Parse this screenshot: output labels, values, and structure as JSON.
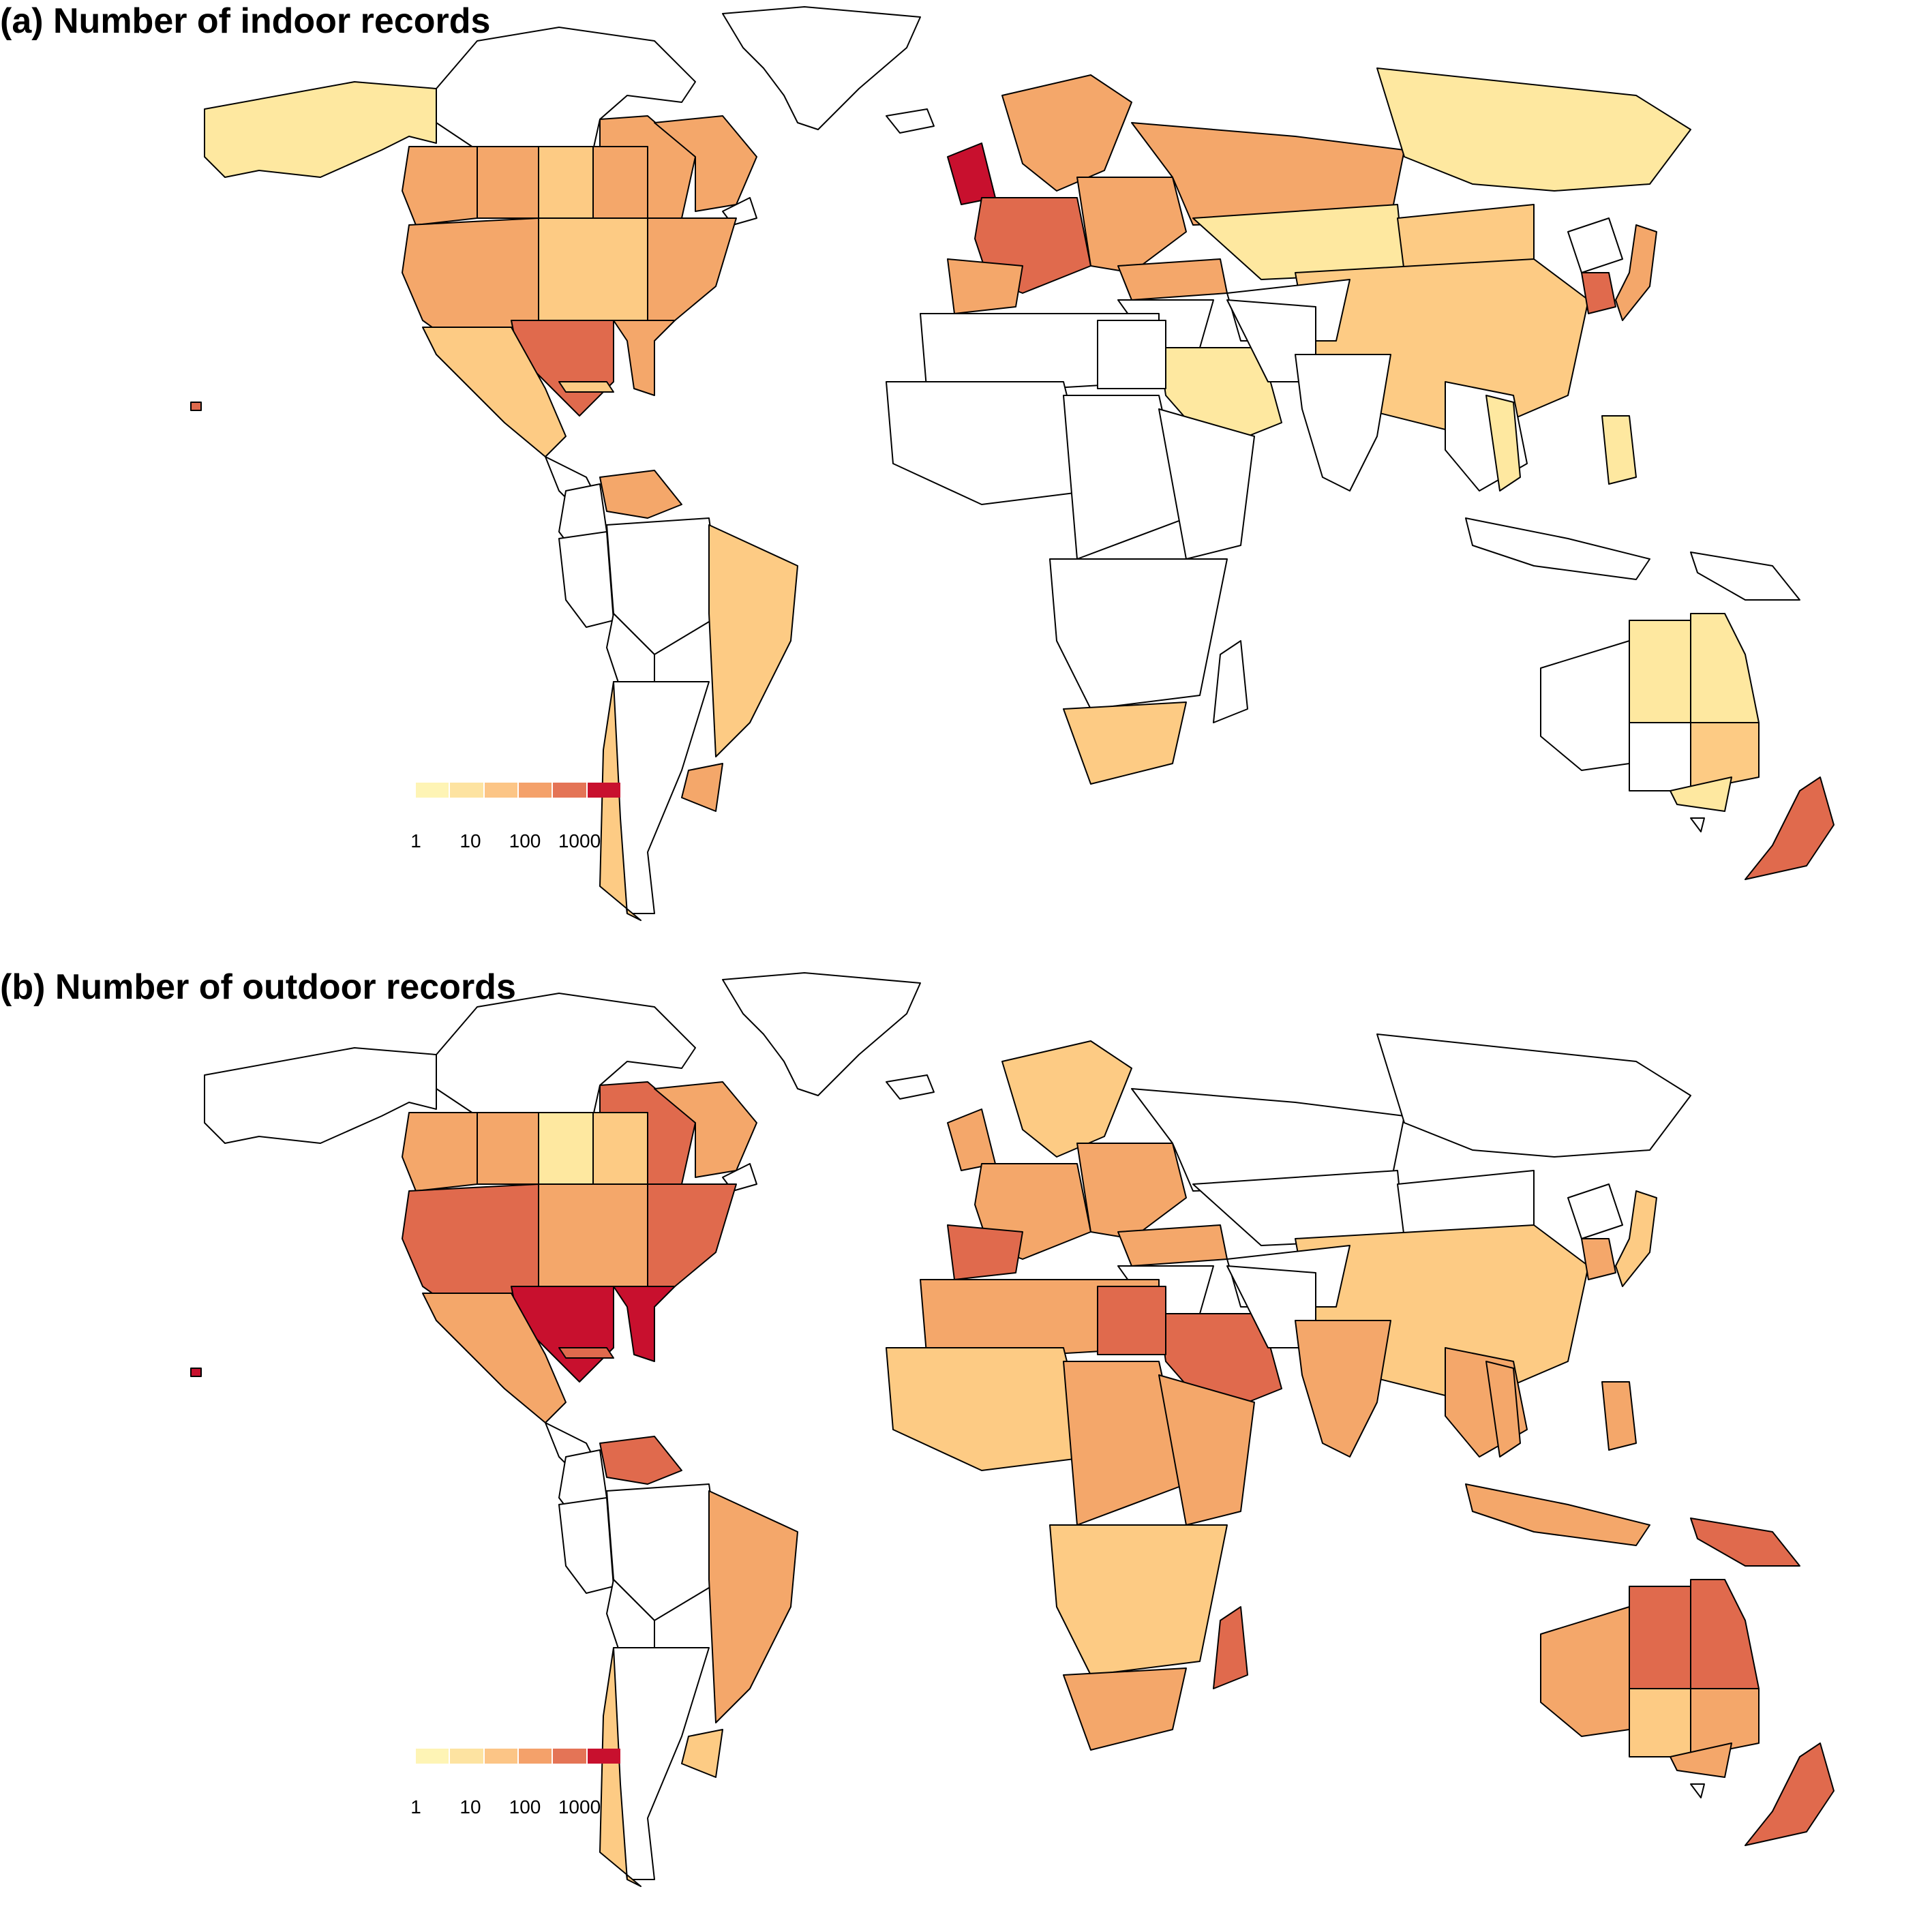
{
  "panels": [
    {
      "title": "(a) Number of indoor records",
      "legend": {
        "ticks": [
          "1",
          "10",
          "100",
          "1000"
        ]
      },
      "regions": [
        {
          "name": "Alaska",
          "level": 1
        },
        {
          "name": "British Columbia",
          "level": 3
        },
        {
          "name": "Alberta",
          "level": 3
        },
        {
          "name": "Saskatchewan",
          "level": 2
        },
        {
          "name": "Manitoba",
          "level": 3
        },
        {
          "name": "Ontario",
          "level": 3
        },
        {
          "name": "Quebec",
          "level": 3
        },
        {
          "name": "Western USA",
          "level": 3
        },
        {
          "name": "Central USA",
          "level": 2
        },
        {
          "name": "Eastern USA",
          "level": 3
        },
        {
          "name": "Texas",
          "level": 4
        },
        {
          "name": "Florida",
          "level": 3
        },
        {
          "name": "Mexico",
          "level": 2
        },
        {
          "name": "Cuba",
          "level": 2
        },
        {
          "name": "Venezuela",
          "level": 3
        },
        {
          "name": "Brazil east",
          "level": 2
        },
        {
          "name": "Uruguay",
          "level": 3
        },
        {
          "name": "Chile",
          "level": 2
        },
        {
          "name": "United Kingdom",
          "level": 5
        },
        {
          "name": "Western Europe",
          "level": 4
        },
        {
          "name": "Scandinavia",
          "level": 3
        },
        {
          "name": "Iberia",
          "level": 3
        },
        {
          "name": "Eastern Europe",
          "level": 3
        },
        {
          "name": "Turkey",
          "level": 3
        },
        {
          "name": "Russia west",
          "level": 3
        },
        {
          "name": "Russia east",
          "level": 1
        },
        {
          "name": "Kazakhstan",
          "level": 1
        },
        {
          "name": "Mongolia",
          "level": 2
        },
        {
          "name": "China",
          "level": 2
        },
        {
          "name": "Saudi Arabia",
          "level": 1
        },
        {
          "name": "South Africa",
          "level": 2
        },
        {
          "name": "South Korea",
          "level": 4
        },
        {
          "name": "Japan",
          "level": 3
        },
        {
          "name": "Thailand",
          "level": 1
        },
        {
          "name": "Philippines",
          "level": 1
        },
        {
          "name": "Western Australia",
          "level": 0
        },
        {
          "name": "Northern Territory",
          "level": 1
        },
        {
          "name": "Queensland",
          "level": 1
        },
        {
          "name": "South Australia",
          "level": 0
        },
        {
          "name": "New South Wales",
          "level": 2
        },
        {
          "name": "Victoria",
          "level": 1
        },
        {
          "name": "New Zealand",
          "level": 4
        },
        {
          "name": "Hawaii",
          "level": 4
        }
      ]
    },
    {
      "title": "(b) Number of outdoor records",
      "legend": {
        "ticks": [
          "1",
          "10",
          "100",
          "1000"
        ]
      },
      "regions": [
        {
          "name": "Alaska",
          "level": 0
        },
        {
          "name": "British Columbia",
          "level": 3
        },
        {
          "name": "Alberta",
          "level": 3
        },
        {
          "name": "Saskatchewan",
          "level": 1
        },
        {
          "name": "Manitoba",
          "level": 2
        },
        {
          "name": "Ontario",
          "level": 4
        },
        {
          "name": "Quebec",
          "level": 3
        },
        {
          "name": "Western USA",
          "level": 4
        },
        {
          "name": "Central USA",
          "level": 3
        },
        {
          "name": "Eastern USA",
          "level": 4
        },
        {
          "name": "Texas",
          "level": 5
        },
        {
          "name": "Florida",
          "level": 5
        },
        {
          "name": "Mexico",
          "level": 3
        },
        {
          "name": "Cuba",
          "level": 4
        },
        {
          "name": "Venezuela",
          "level": 4
        },
        {
          "name": "Brazil east",
          "level": 3
        },
        {
          "name": "Uruguay",
          "level": 2
        },
        {
          "name": "Chile",
          "level": 2
        },
        {
          "name": "United Kingdom",
          "level": 3
        },
        {
          "name": "Western Europe",
          "level": 3
        },
        {
          "name": "Scandinavia",
          "level": 2
        },
        {
          "name": "Iberia",
          "level": 4
        },
        {
          "name": "Eastern Europe",
          "level": 3
        },
        {
          "name": "Turkey",
          "level": 3
        },
        {
          "name": "Russia west",
          "level": 0
        },
        {
          "name": "Russia east",
          "level": 0
        },
        {
          "name": "Kazakhstan",
          "level": 0
        },
        {
          "name": "Mongolia",
          "level": 0
        },
        {
          "name": "China",
          "level": 2
        },
        {
          "name": "Saudi Arabia",
          "level": 4
        },
        {
          "name": "Egypt",
          "level": 4
        },
        {
          "name": "North Africa",
          "level": 3
        },
        {
          "name": "West Africa",
          "level": 2
        },
        {
          "name": "Central Africa",
          "level": 3
        },
        {
          "name": "East Africa",
          "level": 3
        },
        {
          "name": "Southern Africa",
          "level": 2
        },
        {
          "name": "South Africa",
          "level": 3
        },
        {
          "name": "Madagascar",
          "level": 4
        },
        {
          "name": "India",
          "level": 3
        },
        {
          "name": "Southeast Asia",
          "level": 3
        },
        {
          "name": "Indonesia",
          "level": 3
        },
        {
          "name": "Papua New Guinea",
          "level": 4
        },
        {
          "name": "South Korea",
          "level": 3
        },
        {
          "name": "Japan",
          "level": 2
        },
        {
          "name": "Thailand",
          "level": 3
        },
        {
          "name": "Philippines",
          "level": 3
        },
        {
          "name": "Western Australia",
          "level": 3
        },
        {
          "name": "Northern Territory",
          "level": 4
        },
        {
          "name": "Queensland",
          "level": 4
        },
        {
          "name": "South Australia",
          "level": 2
        },
        {
          "name": "New South Wales",
          "level": 3
        },
        {
          "name": "Victoria",
          "level": 3
        },
        {
          "name": "New Zealand",
          "level": 4
        },
        {
          "name": "Hawaii",
          "level": 5
        }
      ]
    }
  ],
  "palette": {
    "no_data": "#ffffff",
    "levels": [
      "#ffffbf",
      "#fee8a0",
      "#fdcb84",
      "#f4a76a",
      "#e06a4d",
      "#c8102e"
    ],
    "legend_colors": [
      "#fef4b5",
      "#fde3a1",
      "#fcc586",
      "#f4a16a",
      "#e47456",
      "#c8102e"
    ],
    "border": "#000000"
  }
}
